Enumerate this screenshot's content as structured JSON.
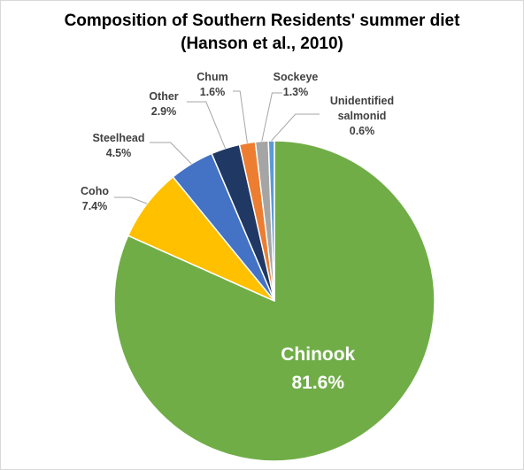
{
  "chart_data": {
    "type": "pie",
    "title_lines": [
      "Composition of Southern Residents' summer diet",
      "(Hanson et al., 2010)"
    ],
    "categories": [
      "Chinook",
      "Coho",
      "Steelhead",
      "Other",
      "Chum",
      "Sockeye",
      "Unidentified salmonid"
    ],
    "values": [
      81.6,
      7.4,
      4.5,
      2.9,
      1.6,
      1.3,
      0.6
    ],
    "value_labels": [
      "81.6%",
      "7.4%",
      "4.5%",
      "2.9%",
      "1.6%",
      "1.3%",
      "0.6%"
    ],
    "colors": [
      "#70ad47",
      "#ffc000",
      "#4472c4",
      "#1f3864",
      "#ed7d31",
      "#a5a5a5",
      "#5b9bd5"
    ]
  }
}
